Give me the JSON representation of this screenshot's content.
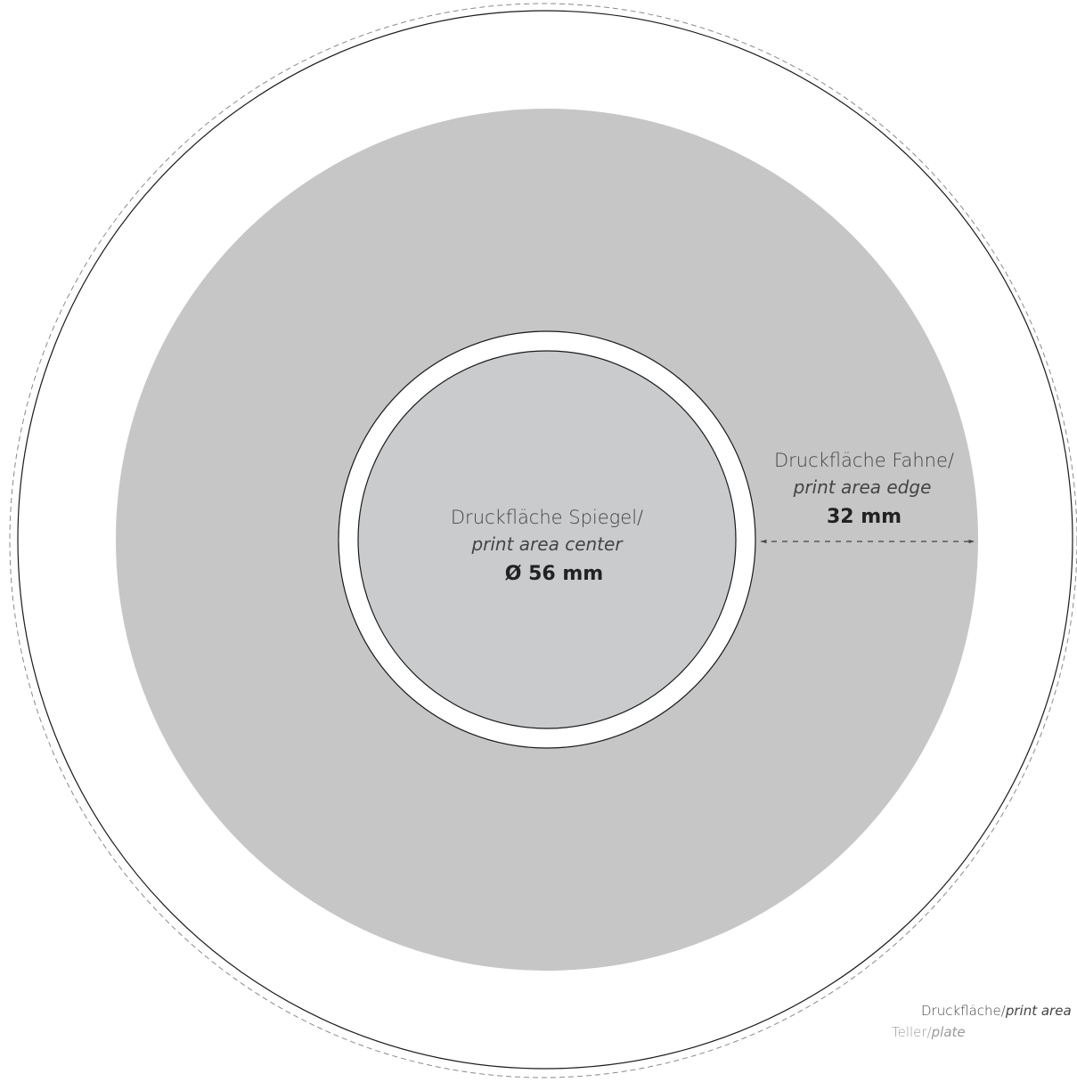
{
  "center_area": {
    "label_de": "Druckfläche Spiegel/",
    "label_en": "print area center",
    "dimension": "Ø 56 mm"
  },
  "edge_area": {
    "label_de": "Druckfläche Fahne/",
    "label_en": "print area edge",
    "dimension": "32 mm"
  },
  "legend": {
    "print_area_de": "Druckfläche/",
    "print_area_en": "print area",
    "plate_de": "Teller/",
    "plate_en": "plate"
  },
  "colors": {
    "print_area_fill": "#c6c6c6",
    "center_fill": "#c9cbcd",
    "outline": "#1a1a1a",
    "dashed_outline": "#8a8a8a",
    "text": "#444444",
    "plate_text": "#9a9a9a"
  }
}
